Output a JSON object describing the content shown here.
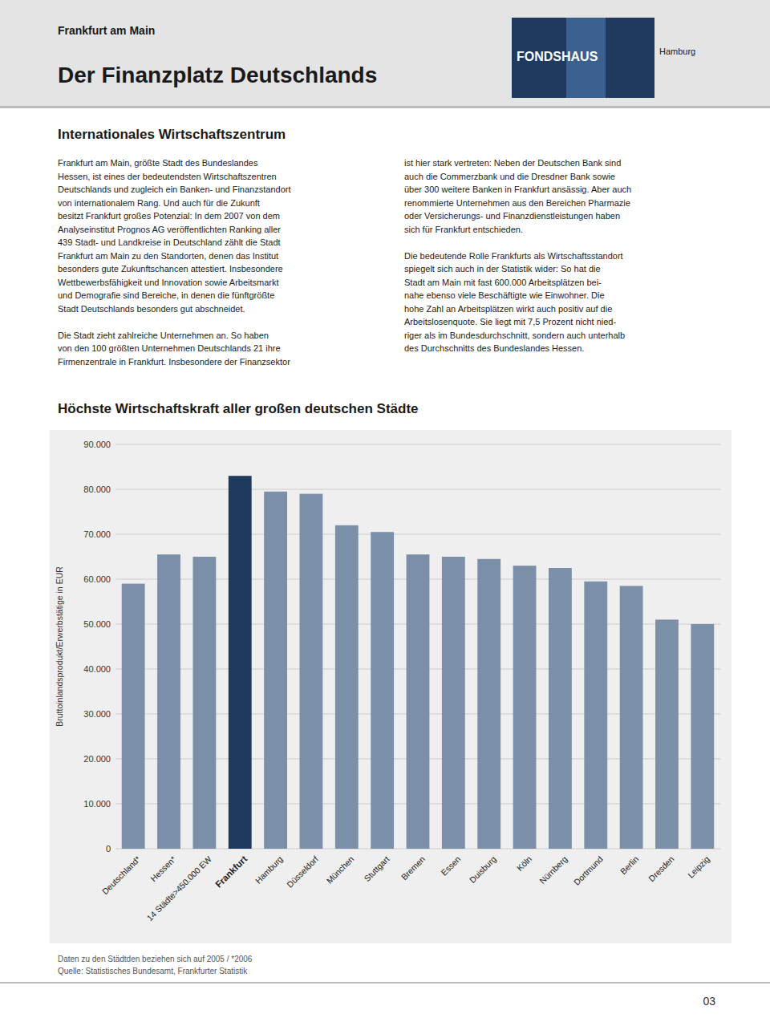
{
  "header_small": "Frankfurt am Main",
  "header_title": "Der Finanzplatz Deutschlands",
  "logo_text": "FONDSHAUS",
  "logo_subtext": "Hamburg",
  "section_title": "Internationales Wirtschaftszentrum",
  "text_left": "Frankfurt am Main, größte Stadt des Bundeslandes\nHessen, ist eines der bedeutendsten Wirtschaftszentren\nDeutschlands und zugleich ein Banken- und Finanzstandort\nvon internationalem Rang. Und auch für die Zukunft\nbesitzt Frankfurt großes Potenzial: In dem 2007 von dem\nAnalyseinstitut Prognos AG veröffentlichten Ranking aller\n439 Stadt- und Landkreise in Deutschland zählt die Stadt\nFrankfurt am Main zu den Standorten, denen das Institut\nbesonders gute Zukunftschancen attestiert. Insbesondere\nWettbewerbsfähigkeit und Innovation sowie Arbeitsmarkt\nund Demografie sind Bereiche, in denen die fünftgrößte\nStadt Deutschlands besonders gut abschneidet.\n\nDie Stadt zieht zahlreiche Unternehmen an. So haben\nvon den 100 größten Unternehmen Deutschlands 21 ihre\nFirmenzentrale in Frankfurt. Insbesondere der Finanzsektor",
  "text_right": "ist hier stark vertreten: Neben der Deutschen Bank sind\nauch die Commerzbank und die Dresdner Bank sowie\nüber 300 weitere Banken in Frankfurt ansässig. Aber auch\nrenommierte Unternehmen aus den Bereichen Pharmazie\noder Versicherungs- und Finanzdienstleistungen haben\nsich für Frankfurt entschieden.\n\nDie bedeutende Rolle Frankfurts als Wirtschaftsstandort\nspiegelt sich auch in der Statistik wider: So hat die\nStadt am Main mit fast 600.000 Arbeitsplätzen bei-\nnahe ebenso viele Beschäftigte wie Einwohner. Die\nhohe Zahl an Arbeitsplätzen wirkt auch positiv auf die\nArbeitslosenquote. Sie liegt mit 7,5 Prozent nicht nied-\nriger als im Bundesdurchschnitt, sondern auch unterhalb\ndes Durchschnitts des Bundeslandes Hessen.",
  "footer_text": "Daten zu den Städtden beziehen sich auf 2005 / *2006\nQuelle: Statistisches Bundesamt, Frankfurter Statistik",
  "page_number": "03",
  "chart_data": {
    "type": "bar",
    "title": "Höchste Wirtschaftskraft aller großen deutschen Städte",
    "y_label": "Bruttoinlandsprodukt/Erwerbstätige in EUR",
    "categories": [
      "Deutschland*",
      "Hessen*",
      "14 Städte>450.000 EW",
      "Frankfurt",
      "Hamburg",
      "Düsseldorf",
      "München",
      "Stuttgart",
      "Bremen",
      "Essen",
      "Duisburg",
      "Köln",
      "Nürnberg",
      "Dortmund",
      "Berlin",
      "Dresden",
      "Leipzig"
    ],
    "values": [
      59000,
      65500,
      65000,
      83000,
      79500,
      79000,
      72000,
      70500,
      65500,
      65000,
      64500,
      63000,
      62500,
      59500,
      58500,
      51000,
      50000
    ],
    "colors": [
      "#7b8fa8",
      "#7b8fa8",
      "#7b8fa8",
      "#1e3a5f",
      "#7b8fa8",
      "#7b8fa8",
      "#7b8fa8",
      "#7b8fa8",
      "#7b8fa8",
      "#7b8fa8",
      "#7b8fa8",
      "#7b8fa8",
      "#7b8fa8",
      "#7b8fa8",
      "#7b8fa8",
      "#7b8fa8",
      "#7b8fa8"
    ],
    "ylim": [
      0,
      90000
    ],
    "yticks": [
      0,
      {
        "value": 10000,
        "label": "10.000"
      },
      {
        "value": 20000,
        "label": "20.000"
      },
      {
        "value": 30000,
        "label": "30.000"
      },
      {
        "value": 40000,
        "label": "40.000"
      },
      {
        "value": 50000,
        "label": "50.000"
      },
      {
        "value": 60000,
        "label": "60.000"
      },
      {
        "value": 70000,
        "label": "70.000"
      },
      {
        "value": 80000,
        "label": "80.000"
      },
      {
        "value": 90000,
        "label": "90.000"
      }
    ],
    "grid": true
  }
}
